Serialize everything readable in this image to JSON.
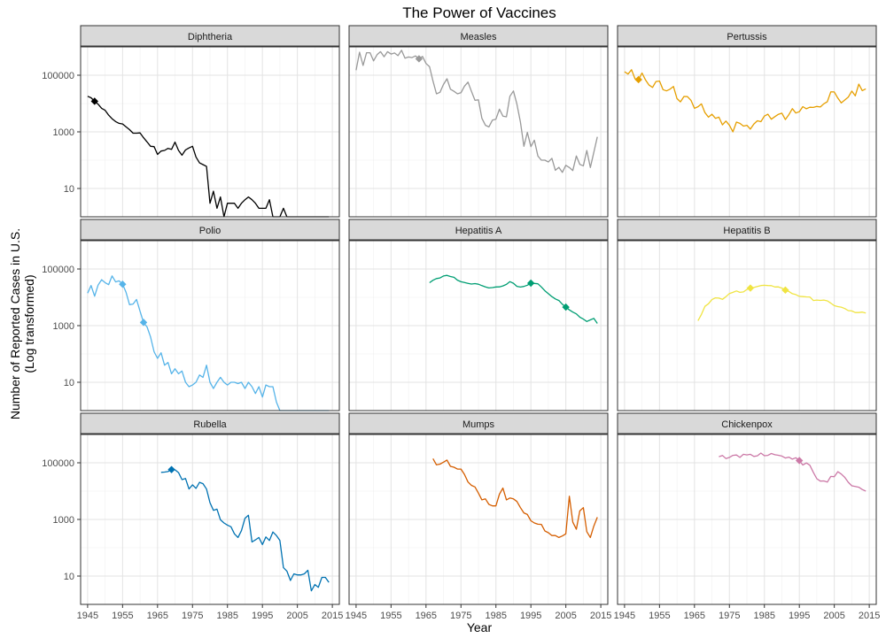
{
  "chart_data": {
    "type": "line",
    "title": "The Power of Vaccines",
    "xlabel": "Year",
    "ylabel_lines": [
      "Number of Reported Cases in U.S.",
      "(Log transformed)"
    ],
    "y_scale": "log10",
    "xlim": [
      1943,
      2017
    ],
    "ylim": [
      1,
      1000000
    ],
    "x_ticks": [
      1945,
      1955,
      1965,
      1975,
      1985,
      1995,
      2005,
      2015
    ],
    "x_tick_labels": [
      "1945",
      "1955",
      "1965",
      "1975",
      "1985",
      "1995",
      "2005",
      "2015"
    ],
    "y_ticks": [
      10,
      1000,
      100000
    ],
    "y_tick_labels": [
      "10",
      "1000",
      "100000"
    ],
    "grid": true,
    "markers_note": "diamond markers indicate vaccine introduction/milestone years",
    "panels": [
      {
        "name": "Diphtheria",
        "color": "#000000",
        "x": [
          1945,
          1946,
          1947,
          1948,
          1949,
          1950,
          1951,
          1952,
          1953,
          1954,
          1955,
          1956,
          1957,
          1958,
          1959,
          1960,
          1961,
          1962,
          1963,
          1964,
          1965,
          1966,
          1967,
          1968,
          1969,
          1970,
          1971,
          1972,
          1973,
          1974,
          1975,
          1976,
          1977,
          1978,
          1979,
          1980,
          1981,
          1982,
          1983,
          1984,
          1985,
          1986,
          1987,
          1988,
          1989,
          1990,
          1991,
          1992,
          1993,
          1994,
          1995,
          1996,
          1997,
          1998,
          1999,
          2000,
          2001,
          2002,
          2003,
          2004,
          2005,
          2006,
          2007,
          2008,
          2009,
          2010,
          2011,
          2012,
          2013,
          2014
        ],
        "y": [
          18000,
          16000,
          12000,
          9500,
          6800,
          5800,
          3900,
          2900,
          2300,
          2000,
          1900,
          1500,
          1200,
          900,
          900,
          920,
          620,
          440,
          310,
          300,
          160,
          210,
          220,
          260,
          240,
          435,
          220,
          150,
          230,
          270,
          310,
          130,
          80,
          70,
          60,
          3,
          8,
          2,
          5,
          1,
          3,
          3,
          3,
          2,
          3,
          4,
          5,
          4,
          3,
          2,
          2,
          2,
          4,
          1,
          1,
          1,
          2,
          1,
          1,
          1,
          1,
          1,
          1,
          1,
          1,
          1,
          1,
          1,
          1,
          1
        ],
        "markers": [
          {
            "x": 1947,
            "y": 12000
          }
        ]
      },
      {
        "name": "Measles",
        "color": "#999999",
        "x": [
          1945,
          1946,
          1947,
          1948,
          1949,
          1950,
          1951,
          1952,
          1953,
          1954,
          1955,
          1956,
          1957,
          1958,
          1959,
          1960,
          1961,
          1962,
          1963,
          1964,
          1965,
          1966,
          1967,
          1968,
          1969,
          1970,
          1971,
          1972,
          1973,
          1974,
          1975,
          1976,
          1977,
          1978,
          1979,
          1980,
          1981,
          1982,
          1983,
          1984,
          1985,
          1986,
          1987,
          1988,
          1989,
          1990,
          1991,
          1992,
          1993,
          1994,
          1995,
          1996,
          1997,
          1998,
          1999,
          2000,
          2001,
          2002,
          2003,
          2004,
          2005,
          2006,
          2007,
          2008,
          2009,
          2010,
          2011,
          2012,
          2013,
          2014
        ],
        "y": [
          150000,
          650000,
          220000,
          620000,
          620000,
          320000,
          530000,
          680000,
          450000,
          680000,
          560000,
          610000,
          490000,
          760000,
          400000,
          440000,
          420000,
          480000,
          380000,
          460000,
          260000,
          200000,
          62000,
          22000,
          25000,
          47000,
          75000,
          32000,
          27000,
          22000,
          24000,
          41000,
          57000,
          27000,
          13000,
          13500,
          3000,
          1700,
          1500,
          2600,
          2800,
          6300,
          3600,
          3400,
          18000,
          27800,
          9600,
          2200,
          310,
          960,
          300,
          510,
          140,
          100,
          100,
          86,
          116,
          44,
          56,
          37,
          66,
          55,
          43,
          140,
          71,
          63,
          220,
          55,
          187,
          668
        ],
        "markers": [
          {
            "x": 1963,
            "y": 380000
          }
        ]
      },
      {
        "name": "Pertussis",
        "color": "#E69F00",
        "x": [
          1945,
          1946,
          1947,
          1948,
          1949,
          1950,
          1951,
          1952,
          1953,
          1954,
          1955,
          1956,
          1957,
          1958,
          1959,
          1960,
          1961,
          1962,
          1963,
          1964,
          1965,
          1966,
          1967,
          1968,
          1969,
          1970,
          1971,
          1972,
          1973,
          1974,
          1975,
          1976,
          1977,
          1978,
          1979,
          1980,
          1981,
          1982,
          1983,
          1984,
          1985,
          1986,
          1987,
          1988,
          1989,
          1990,
          1991,
          1992,
          1993,
          1994,
          1995,
          1996,
          1997,
          1998,
          1999,
          2000,
          2001,
          2002,
          2003,
          2004,
          2005,
          2006,
          2007,
          2008,
          2009,
          2010,
          2011,
          2012,
          2013,
          2014
        ],
        "y": [
          133000,
          110000,
          156000,
          75000,
          70000,
          120000,
          68000,
          45000,
          37000,
          60000,
          62000,
          31000,
          28000,
          32000,
          40000,
          15000,
          11500,
          17800,
          17500,
          13000,
          6800,
          7700,
          9700,
          4800,
          3300,
          4200,
          3000,
          3300,
          1760,
          2400,
          1700,
          1000,
          2200,
          2000,
          1600,
          1700,
          1250,
          1900,
          2460,
          2280,
          3590,
          4200,
          2800,
          3450,
          4160,
          4570,
          2720,
          4080,
          6590,
          4620,
          5140,
          7800,
          6560,
          7400,
          7300,
          7900,
          7580,
          9770,
          11600,
          25800,
          25600,
          15600,
          10500,
          13300,
          16800,
          27600,
          18700,
          48300,
          28600,
          32900
        ],
        "markers": [
          {
            "x": 1949,
            "y": 70000
          }
        ]
      },
      {
        "name": "Polio",
        "color": "#56B4E9",
        "x": [
          1945,
          1946,
          1947,
          1948,
          1949,
          1950,
          1951,
          1952,
          1953,
          1954,
          1955,
          1956,
          1957,
          1958,
          1959,
          1960,
          1961,
          1962,
          1963,
          1964,
          1965,
          1966,
          1967,
          1968,
          1969,
          1970,
          1971,
          1972,
          1973,
          1974,
          1975,
          1976,
          1977,
          1978,
          1979,
          1980,
          1981,
          1982,
          1983,
          1984,
          1985,
          1986,
          1987,
          1988,
          1989,
          1990,
          1991,
          1992,
          1993,
          1994,
          1995,
          1996,
          1997,
          1998,
          1999,
          2000,
          2001,
          2002,
          2003,
          2004,
          2005,
          2006,
          2007,
          2008,
          2009,
          2010,
          2011,
          2012,
          2013,
          2014
        ],
        "y": [
          14000,
          26000,
          11000,
          27000,
          42000,
          33000,
          28000,
          57000,
          35000,
          38000,
          29000,
          15000,
          5500,
          5800,
          8400,
          3200,
          1300,
          900,
          400,
          120,
          70,
          110,
          40,
          50,
          20,
          30,
          20,
          25,
          10,
          7,
          8,
          10,
          18,
          15,
          40,
          10,
          6,
          10,
          15,
          10,
          8,
          10,
          10,
          9,
          10,
          6,
          10,
          7,
          4,
          7,
          3,
          8,
          7,
          7,
          2,
          1,
          1,
          1,
          1,
          1,
          1,
          1,
          1,
          1,
          1,
          1,
          1,
          1,
          1,
          1
        ],
        "markers": [
          {
            "x": 1955,
            "y": 29000
          },
          {
            "x": 1961,
            "y": 1300
          }
        ]
      },
      {
        "name": "Hepatitis A",
        "color": "#009E73",
        "x": [
          1966,
          1967,
          1968,
          1969,
          1970,
          1971,
          1972,
          1973,
          1974,
          1975,
          1976,
          1977,
          1978,
          1979,
          1980,
          1981,
          1982,
          1983,
          1984,
          1985,
          1986,
          1987,
          1988,
          1989,
          1990,
          1991,
          1992,
          1993,
          1994,
          1995,
          1996,
          1997,
          1998,
          1999,
          2000,
          2001,
          2002,
          2003,
          2004,
          2005,
          2006,
          2007,
          2008,
          2009,
          2010,
          2011,
          2012,
          2013,
          2014
        ],
        "y": [
          32800,
          40000,
          45900,
          48400,
          56800,
          59600,
          54100,
          50700,
          40400,
          35600,
          33300,
          31200,
          29500,
          30400,
          29100,
          25800,
          23400,
          21500,
          22000,
          23200,
          23400,
          25300,
          28500,
          35800,
          31400,
          24400,
          23100,
          24200,
          26800,
          31600,
          31000,
          30000,
          23200,
          17000,
          13400,
          10600,
          8800,
          7700,
          5700,
          4500,
          3600,
          3000,
          2600,
          2000,
          1700,
          1400,
          1600,
          1800,
          1200
        ],
        "markers": [
          {
            "x": 1995,
            "y": 31600
          },
          {
            "x": 2005,
            "y": 4500
          }
        ]
      },
      {
        "name": "Hepatitis B",
        "color": "#F0E442",
        "x": [
          1966,
          1967,
          1968,
          1969,
          1970,
          1971,
          1972,
          1973,
          1974,
          1975,
          1976,
          1977,
          1978,
          1979,
          1980,
          1981,
          1982,
          1983,
          1984,
          1985,
          1986,
          1987,
          1988,
          1989,
          1990,
          1991,
          1992,
          1993,
          1994,
          1995,
          1996,
          1997,
          1998,
          1999,
          2000,
          2001,
          2002,
          2003,
          2004,
          2005,
          2006,
          2007,
          2008,
          2009,
          2010,
          2011,
          2012,
          2013,
          2014
        ],
        "y": [
          1500,
          2500,
          4800,
          5900,
          8300,
          9600,
          9400,
          8500,
          10500,
          13600,
          15000,
          16800,
          15000,
          15500,
          19000,
          21200,
          22200,
          24300,
          26100,
          26600,
          26100,
          25900,
          23200,
          23400,
          21100,
          18000,
          16100,
          13400,
          12500,
          10800,
          10600,
          10400,
          10300,
          7700,
          8000,
          7800,
          8000,
          7500,
          6200,
          5100,
          4700,
          4500,
          4000,
          3400,
          3300,
          2900,
          2900,
          3000,
          2800
        ],
        "markers": [
          {
            "x": 1981,
            "y": 21200
          },
          {
            "x": 1991,
            "y": 18000
          }
        ]
      },
      {
        "name": "Rubella",
        "color": "#0072B2",
        "x": [
          1966,
          1967,
          1968,
          1969,
          1970,
          1971,
          1972,
          1973,
          1974,
          1975,
          1976,
          1977,
          1978,
          1979,
          1980,
          1981,
          1982,
          1983,
          1984,
          1985,
          1986,
          1987,
          1988,
          1989,
          1990,
          1991,
          1992,
          1993,
          1994,
          1995,
          1996,
          1997,
          1998,
          1999,
          2000,
          2001,
          2002,
          2003,
          2004,
          2005,
          2006,
          2007,
          2008,
          2009,
          2010,
          2011,
          2012,
          2013,
          2014
        ],
        "y": [
          46000,
          46900,
          49000,
          57700,
          56500,
          45100,
          25500,
          27800,
          11900,
          16700,
          12500,
          20400,
          18300,
          11800,
          3900,
          2100,
          2300,
          970,
          750,
          630,
          550,
          310,
          230,
          400,
          1100,
          1400,
          160,
          190,
          230,
          130,
          240,
          180,
          360,
          270,
          180,
          20,
          15,
          7,
          12,
          11,
          11,
          12,
          16,
          3,
          5,
          4,
          9,
          9,
          6
        ],
        "markers": [
          {
            "x": 1969,
            "y": 57700
          }
        ]
      },
      {
        "name": "Mumps",
        "color": "#D55E00",
        "x": [
          1967,
          1968,
          1969,
          1970,
          1971,
          1972,
          1973,
          1974,
          1975,
          1976,
          1977,
          1978,
          1979,
          1980,
          1981,
          1982,
          1983,
          1984,
          1985,
          1986,
          1987,
          1988,
          1989,
          1990,
          1991,
          1992,
          1993,
          1994,
          1995,
          1996,
          1997,
          1998,
          1999,
          2000,
          2001,
          2002,
          2003,
          2004,
          2005,
          2006,
          2007,
          2008,
          2009,
          2010,
          2011,
          2012,
          2013,
          2014
        ],
        "y": [
          140000,
          85000,
          90000,
          105000,
          125000,
          75000,
          70000,
          60000,
          60000,
          39000,
          21000,
          16000,
          14000,
          8500,
          4900,
          5300,
          3400,
          3000,
          3000,
          7800,
          12800,
          4900,
          5700,
          5300,
          4300,
          2600,
          1700,
          1500,
          900,
          750,
          680,
          670,
          390,
          340,
          270,
          270,
          230,
          260,
          310,
          6600,
          800,
          450,
          1990,
          2600,
          370,
          230,
          580,
          1200
        ],
        "markers": []
      },
      {
        "name": "Chickenpox",
        "color": "#CC79A7",
        "x": [
          1972,
          1973,
          1974,
          1975,
          1976,
          1977,
          1978,
          1979,
          1980,
          1981,
          1982,
          1983,
          1984,
          1985,
          1986,
          1987,
          1988,
          1989,
          1990,
          1991,
          1992,
          1993,
          1994,
          1995,
          1996,
          1997,
          1998,
          1999,
          2000,
          2001,
          2002,
          2003,
          2004,
          2005,
          2006,
          2007,
          2008,
          2009,
          2010,
          2011,
          2012,
          2013,
          2014
        ],
        "y": [
          164000,
          182000,
          141000,
          155000,
          183000,
          189000,
          155000,
          199000,
          190000,
          200000,
          168000,
          177000,
          221000,
          178000,
          183000,
          213000,
          192000,
          185000,
          173000,
          147000,
          158000,
          134000,
          151000,
          120000,
          83300,
          98300,
          82500,
          46000,
          27400,
          22500,
          22800,
          20900,
          32900,
          32200,
          48400,
          40100,
          30400,
          20500,
          15400,
          14500,
          13700,
          11400,
          10000
        ],
        "markers": [
          {
            "x": 1995,
            "y": 120000
          }
        ]
      }
    ]
  }
}
